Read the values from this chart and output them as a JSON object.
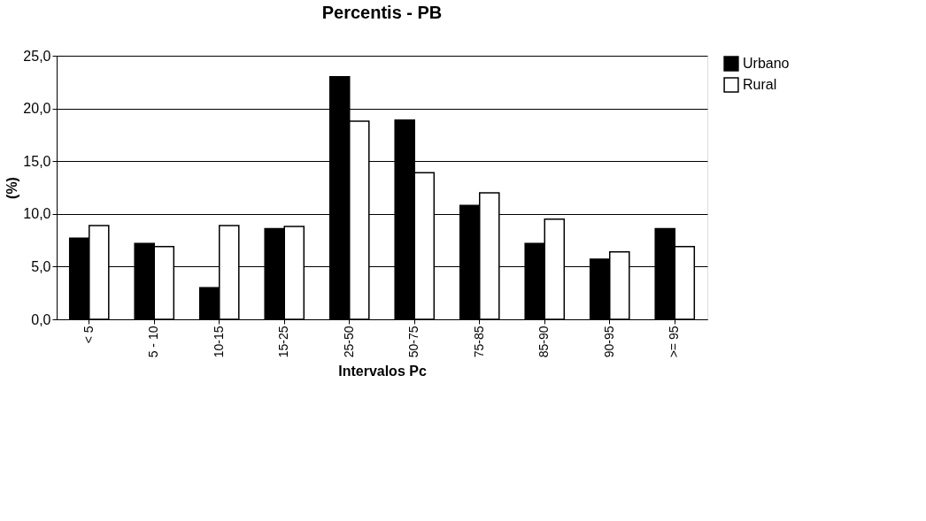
{
  "chart_data": {
    "type": "bar",
    "title": "Percentis - PB",
    "xlabel": "Intervalos Pc",
    "ylabel": "(%)",
    "categories": [
      "< 5",
      "5 - 10",
      "10-15",
      "15-25",
      "25-50",
      "50-75",
      "75-85",
      "85-90",
      "90-95",
      ">= 95"
    ],
    "series": [
      {
        "name": "Urbano",
        "color": "#000000",
        "values": [
          7.7,
          7.2,
          3.0,
          8.6,
          23.0,
          18.9,
          10.8,
          7.2,
          5.7,
          8.6
        ]
      },
      {
        "name": "Rural",
        "color": "#ffffff",
        "values": [
          8.9,
          6.9,
          8.9,
          8.8,
          18.8,
          13.9,
          12.0,
          9.5,
          6.4,
          6.9
        ]
      }
    ],
    "ylim": [
      0,
      25
    ],
    "yticks": [
      {
        "value": 0,
        "label": "0,0"
      },
      {
        "value": 5,
        "label": "5,0"
      },
      {
        "value": 10,
        "label": "10,0"
      },
      {
        "value": 15,
        "label": "15,0"
      },
      {
        "value": 20,
        "label": "20,0"
      },
      {
        "value": 25,
        "label": "25,0"
      }
    ],
    "grid": "y",
    "legend": "right"
  }
}
